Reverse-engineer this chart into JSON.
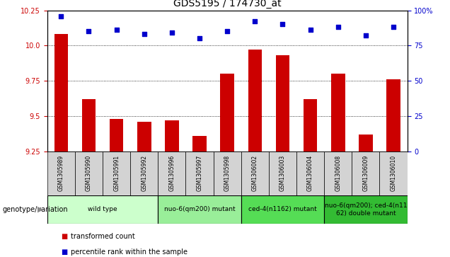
{
  "title": "GDS5195 / 174730_at",
  "samples": [
    "GSM1305989",
    "GSM1305990",
    "GSM1305991",
    "GSM1305992",
    "GSM1305996",
    "GSM1305997",
    "GSM1305998",
    "GSM1306002",
    "GSM1306003",
    "GSM1306004",
    "GSM1306008",
    "GSM1306009",
    "GSM1306010"
  ],
  "transformed_count": [
    10.08,
    9.62,
    9.48,
    9.46,
    9.47,
    9.36,
    9.8,
    9.97,
    9.93,
    9.62,
    9.8,
    9.37,
    9.76
  ],
  "percentile_rank": [
    96,
    85,
    86,
    83,
    84,
    80,
    85,
    92,
    90,
    86,
    88,
    82,
    88
  ],
  "bar_color": "#cc0000",
  "dot_color": "#0000cc",
  "ylim_left": [
    9.25,
    10.25
  ],
  "ylim_right": [
    0,
    100
  ],
  "yticks_left": [
    9.25,
    9.5,
    9.75,
    10.0,
    10.25
  ],
  "yticks_right": [
    0,
    25,
    50,
    75,
    100
  ],
  "groups": [
    {
      "label": "wild type",
      "start": 0,
      "end": 3,
      "color": "#ccffcc"
    },
    {
      "label": "nuo-6(qm200) mutant",
      "start": 4,
      "end": 6,
      "color": "#99ee99"
    },
    {
      "label": "ced-4(n1162) mutant",
      "start": 7,
      "end": 9,
      "color": "#55dd55"
    },
    {
      "label": "nuo-6(qm200); ced-4(n11\n62) double mutant",
      "start": 10,
      "end": 12,
      "color": "#33bb33"
    }
  ],
  "group_label_prefix": "genotype/variation",
  "legend_items": [
    {
      "label": "transformed count",
      "color": "#cc0000"
    },
    {
      "label": "percentile rank within the sample",
      "color": "#0000cc"
    }
  ],
  "cell_bg": "#d3d3d3",
  "title_fontsize": 10,
  "axis_fontsize": 7,
  "sample_fontsize": 5.5,
  "group_fontsize": 6.5,
  "legend_fontsize": 7
}
